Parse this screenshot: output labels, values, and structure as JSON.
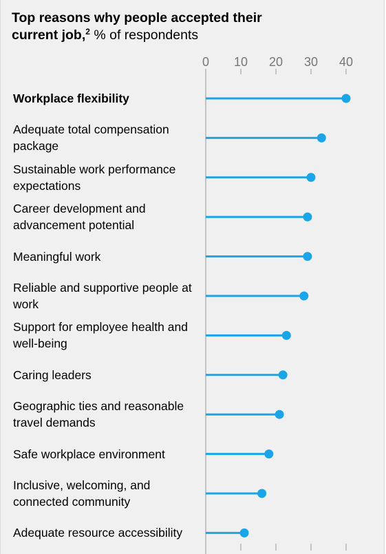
{
  "title": {
    "bold": "Top reasons why people accepted their current job,",
    "footnote": "2",
    "normal": " % of respondents"
  },
  "chart_data": {
    "type": "bar",
    "style": "lollipop",
    "orientation": "horizontal",
    "categories": [
      "Workplace flexibility",
      "Adequate total compensation package",
      "Sustainable work performance expectations",
      "Career development and advancement potential",
      "Meaningful work",
      "Reliable and supportive people at work",
      "Support for employee health and well-being",
      "Caring leaders",
      "Geographic ties and reasonable travel demands",
      "Safe workplace environment",
      "Inclusive, welcoming, and connected community",
      "Adequate resource accessibility"
    ],
    "values": [
      40,
      33,
      30,
      29,
      29,
      28,
      23,
      22,
      21,
      18,
      16,
      11
    ],
    "highlighted_category": "Workplace flexibility",
    "xlim": [
      0,
      40
    ],
    "xticks": [
      0,
      10,
      20,
      30,
      40
    ],
    "axis_position": "top",
    "grid": false,
    "color": "#1aa5e8"
  }
}
